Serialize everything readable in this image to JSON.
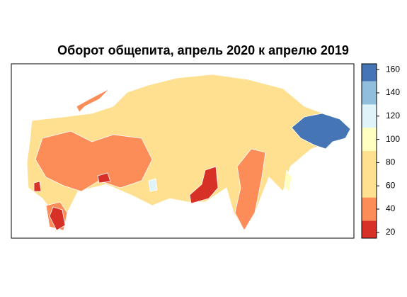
{
  "title": "Оборот общепита, апрель 2020 к апрелю 2019",
  "legend": {
    "lim": [
      15,
      165
    ],
    "breaks": [
      15,
      30,
      50,
      90,
      110,
      130,
      150,
      165
    ],
    "colors": [
      "#d73027",
      "#fc8d59",
      "#fee090",
      "#ffffbf",
      "#e0f3f8",
      "#91bfdb",
      "#4575b4"
    ],
    "ticks": [
      20,
      40,
      60,
      80,
      100,
      120,
      140,
      160
    ]
  }
}
